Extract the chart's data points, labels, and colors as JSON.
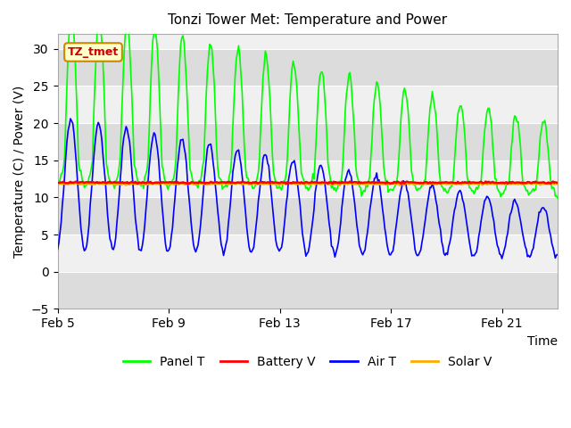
{
  "title": "Tonzi Tower Met: Temperature and Power",
  "xlabel": "Time",
  "ylabel": "Temperature (C) / Power (V)",
  "ylim": [
    -5,
    32
  ],
  "yticks": [
    -5,
    0,
    5,
    10,
    15,
    20,
    25,
    30
  ],
  "plot_bg_color": "#f0f0f0",
  "band_colors": [
    "#dcdcdc",
    "#f0f0f0"
  ],
  "band_ranges": [
    [
      -5,
      0
    ],
    [
      0,
      5
    ],
    [
      5,
      10
    ],
    [
      10,
      15
    ],
    [
      15,
      20
    ],
    [
      20,
      25
    ],
    [
      25,
      30
    ]
  ],
  "tz_label": "TZ_tmet",
  "legend_entries": [
    "Panel T",
    "Battery V",
    "Air T",
    "Solar V"
  ],
  "legend_colors": [
    "#00ff00",
    "#ff0000",
    "#0000ff",
    "#ffaa00"
  ],
  "x_tick_labels": [
    "Feb 5",
    "Feb 9",
    "Feb 13",
    "Feb 17",
    "Feb 21"
  ],
  "x_tick_positions": [
    5,
    9,
    13,
    17,
    21
  ],
  "panel_color": "#00ff00",
  "battery_color": "#ff0000",
  "air_color": "#0000ff",
  "solar_color": "#ffaa00"
}
